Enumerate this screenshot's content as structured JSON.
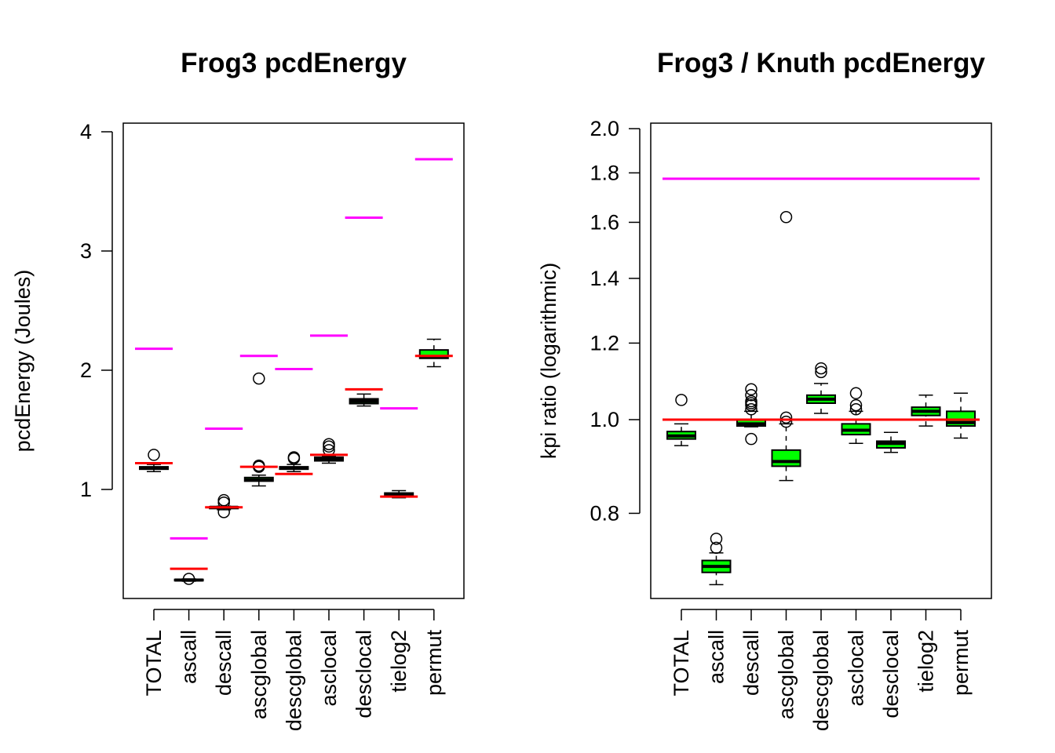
{
  "chart_data": [
    {
      "type": "boxplot",
      "title": "Frog3 pcdEnergy",
      "xlabel": "",
      "ylabel": "pcdEnergy (Joules)",
      "yscale": "linear",
      "ylim": [
        0.15,
        4.07
      ],
      "yticks": [
        1,
        2,
        3,
        4
      ],
      "categories": [
        "TOTAL",
        "ascall",
        "descall",
        "ascglobal",
        "descglobal",
        "asclocal",
        "desclocal",
        "tielog2",
        "permut"
      ],
      "boxes": [
        {
          "stats": [
            1.15,
            1.17,
            1.18,
            1.19,
            1.21
          ],
          "outliers": [
            1.29
          ],
          "magenta": 2.18,
          "red": 1.22
        },
        {
          "stats": [
            0.23,
            0.235,
            0.24,
            0.245,
            0.25
          ],
          "outliers": [
            0.25
          ],
          "magenta": 0.59,
          "red": 0.335
        },
        {
          "stats": [
            0.83,
            0.84,
            0.85,
            0.855,
            0.86
          ],
          "outliers": [
            0.81,
            0.89,
            0.91
          ],
          "magenta": 1.51,
          "red": 0.85
        },
        {
          "stats": [
            1.03,
            1.07,
            1.08,
            1.1,
            1.12
          ],
          "outliers": [
            1.19,
            1.2,
            1.93
          ],
          "magenta": 2.12,
          "red": 1.19
        },
        {
          "stats": [
            1.15,
            1.17,
            1.18,
            1.19,
            1.21
          ],
          "outliers": [
            1.26,
            1.27
          ],
          "magenta": 2.01,
          "red": 1.13
        },
        {
          "stats": [
            1.22,
            1.24,
            1.255,
            1.27,
            1.28
          ],
          "outliers": [
            1.33,
            1.36,
            1.38
          ],
          "magenta": 2.29,
          "red": 1.29
        },
        {
          "stats": [
            1.7,
            1.72,
            1.74,
            1.76,
            1.8
          ],
          "outliers": [],
          "magenta": 3.28,
          "red": 1.84
        },
        {
          "stats": [
            0.93,
            0.95,
            0.96,
            0.97,
            0.99
          ],
          "outliers": [],
          "magenta": 1.68,
          "red": 0.94
        },
        {
          "stats": [
            2.03,
            2.1,
            2.11,
            2.17,
            2.26
          ],
          "outliers": [],
          "magenta": 3.77,
          "red": 2.12
        }
      ]
    },
    {
      "type": "boxplot",
      "title": "Frog3 / Knuth pcdEnergy",
      "xlabel": "",
      "ylabel": "kpi ratio (logarithmic)",
      "yscale": "log",
      "ylim": [
        0.64,
        2.04
      ],
      "yticks": [
        0.8,
        1.0,
        1.2,
        1.4,
        1.6,
        1.8,
        2.0
      ],
      "ytick_labels": [
        "0.8",
        "1.0",
        "1.2",
        "1.4",
        "1.6",
        "1.8",
        "2.0"
      ],
      "categories": [
        "TOTAL",
        "ascall",
        "descall",
        "ascglobal",
        "descglobal",
        "asclocal",
        "desclocal",
        "tielog2",
        "permut"
      ],
      "reference_lines": {
        "magenta": 1.775,
        "red": 1.0
      },
      "boxes": [
        {
          "stats": [
            0.94,
            0.955,
            0.962,
            0.972,
            0.99
          ],
          "outliers": [
            1.048
          ]
        },
        {
          "stats": [
            0.675,
            0.695,
            0.705,
            0.715,
            0.728
          ],
          "outliers": [
            0.737,
            0.753
          ]
        },
        {
          "stats": [
            0.983,
            0.985,
            0.99,
            1.0,
            1.02
          ],
          "outliers": [
            0.955,
            1.025,
            1.035,
            1.04,
            1.045,
            1.06,
            1.075
          ]
        },
        {
          "stats": [
            0.865,
            0.895,
            0.905,
            0.93,
            0.99
          ],
          "outliers": [
            0.995,
            1.005,
            1.62
          ]
        },
        {
          "stats": [
            1.015,
            1.04,
            1.05,
            1.06,
            1.09
          ],
          "outliers": [
            1.12,
            1.13
          ]
        },
        {
          "stats": [
            0.945,
            0.965,
            0.975,
            0.99,
            1.02
          ],
          "outliers": [
            1.025,
            1.035,
            1.065
          ]
        },
        {
          "stats": [
            0.925,
            0.935,
            0.945,
            0.95,
            0.97
          ],
          "outliers": []
        },
        {
          "stats": [
            0.985,
            1.01,
            1.02,
            1.03,
            1.06
          ],
          "outliers": []
        },
        {
          "stats": [
            0.957,
            0.985,
            0.993,
            1.02,
            1.065
          ],
          "outliers": []
        }
      ]
    }
  ]
}
